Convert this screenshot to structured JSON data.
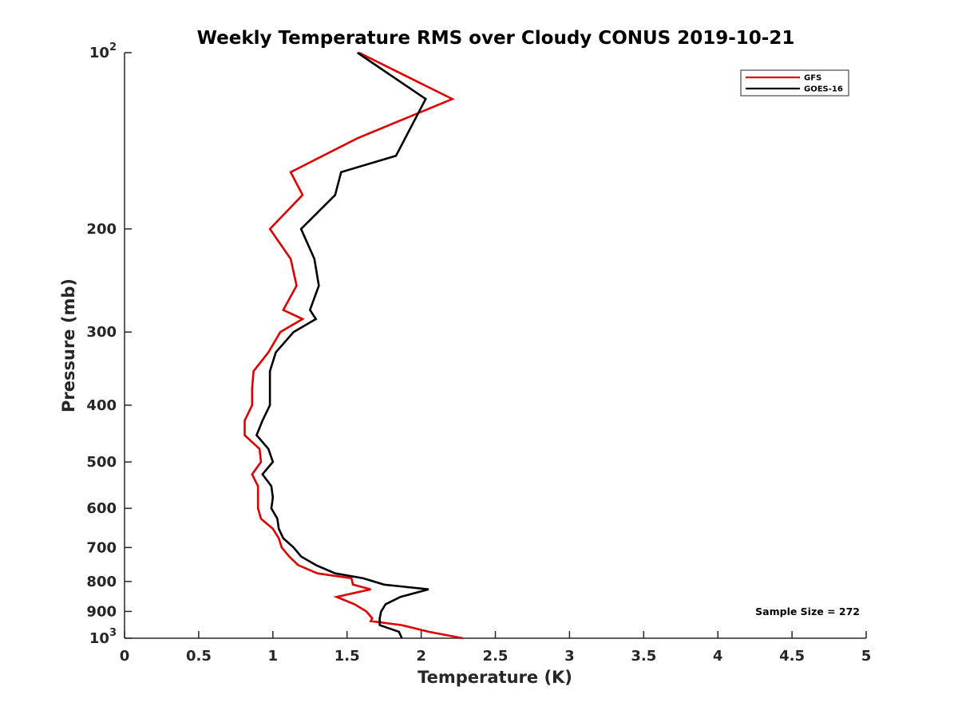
{
  "chart_data": {
    "type": "line",
    "title": "Weekly Temperature RMS over Cloudy CONUS 2019-10-21",
    "xlabel": "Temperature (K)",
    "ylabel": "Pressure (mb)",
    "xlim": [
      0,
      5
    ],
    "ylim": [
      100,
      1000
    ],
    "y_scale": "log",
    "y_reversed": true,
    "grid": false,
    "legend_position": "top-right",
    "x_ticks": [
      0,
      0.5,
      1,
      1.5,
      2,
      2.5,
      3,
      3.5,
      4,
      4.5,
      5
    ],
    "x_tick_labels": [
      "0",
      "0.5",
      "1",
      "1.5",
      "2",
      "2.5",
      "3",
      "3.5",
      "4",
      "4.5",
      "5"
    ],
    "y_ticks": [
      100,
      200,
      300,
      400,
      500,
      600,
      700,
      800,
      900,
      1000
    ],
    "y_tick_labels": [
      {
        "base": "10",
        "exp": "2"
      },
      {
        "base": "200",
        "exp": ""
      },
      {
        "base": "300",
        "exp": ""
      },
      {
        "base": "400",
        "exp": ""
      },
      {
        "base": "500",
        "exp": ""
      },
      {
        "base": "600",
        "exp": ""
      },
      {
        "base": "700",
        "exp": ""
      },
      {
        "base": "800",
        "exp": ""
      },
      {
        "base": "900",
        "exp": ""
      },
      {
        "base": "10",
        "exp": "3"
      }
    ],
    "annotation": "Sample Size = 272",
    "series": [
      {
        "name": "GFS",
        "color": "#e00000",
        "points": [
          [
            1.58,
            100
          ],
          [
            2.21,
            120
          ],
          [
            1.57,
            140
          ],
          [
            1.12,
            160
          ],
          [
            1.2,
            175
          ],
          [
            0.98,
            200
          ],
          [
            1.12,
            225
          ],
          [
            1.16,
            250
          ],
          [
            1.07,
            275
          ],
          [
            1.2,
            285
          ],
          [
            1.05,
            300
          ],
          [
            0.97,
            325
          ],
          [
            0.87,
            350
          ],
          [
            0.86,
            375
          ],
          [
            0.86,
            400
          ],
          [
            0.81,
            425
          ],
          [
            0.81,
            450
          ],
          [
            0.91,
            475
          ],
          [
            0.92,
            500
          ],
          [
            0.86,
            525
          ],
          [
            0.9,
            550
          ],
          [
            0.9,
            575
          ],
          [
            0.9,
            600
          ],
          [
            0.92,
            625
          ],
          [
            1.0,
            650
          ],
          [
            1.04,
            675
          ],
          [
            1.06,
            700
          ],
          [
            1.11,
            725
          ],
          [
            1.17,
            750
          ],
          [
            1.3,
            775
          ],
          [
            1.53,
            790
          ],
          [
            1.54,
            810
          ],
          [
            1.66,
            825
          ],
          [
            1.43,
            850
          ],
          [
            1.55,
            875
          ],
          [
            1.63,
            900
          ],
          [
            1.67,
            925
          ],
          [
            1.66,
            935
          ],
          [
            1.87,
            950
          ],
          [
            2.05,
            975
          ],
          [
            2.28,
            1000
          ]
        ]
      },
      {
        "name": "GOES-16",
        "color": "#000000",
        "points": [
          [
            1.57,
            100
          ],
          [
            2.03,
            120
          ],
          [
            1.83,
            150
          ],
          [
            1.46,
            160
          ],
          [
            1.42,
            175
          ],
          [
            1.19,
            200
          ],
          [
            1.28,
            225
          ],
          [
            1.31,
            250
          ],
          [
            1.25,
            275
          ],
          [
            1.29,
            285
          ],
          [
            1.14,
            300
          ],
          [
            1.02,
            325
          ],
          [
            0.98,
            350
          ],
          [
            0.98,
            375
          ],
          [
            0.98,
            400
          ],
          [
            0.93,
            425
          ],
          [
            0.89,
            450
          ],
          [
            0.97,
            475
          ],
          [
            1.0,
            500
          ],
          [
            0.93,
            525
          ],
          [
            0.99,
            550
          ],
          [
            1.0,
            575
          ],
          [
            0.99,
            600
          ],
          [
            1.03,
            625
          ],
          [
            1.04,
            650
          ],
          [
            1.07,
            675
          ],
          [
            1.14,
            700
          ],
          [
            1.19,
            725
          ],
          [
            1.29,
            750
          ],
          [
            1.42,
            775
          ],
          [
            1.61,
            790
          ],
          [
            1.75,
            810
          ],
          [
            2.05,
            825
          ],
          [
            1.86,
            850
          ],
          [
            1.76,
            875
          ],
          [
            1.73,
            900
          ],
          [
            1.72,
            925
          ],
          [
            1.72,
            950
          ],
          [
            1.85,
            975
          ],
          [
            1.87,
            1000
          ]
        ]
      }
    ]
  }
}
